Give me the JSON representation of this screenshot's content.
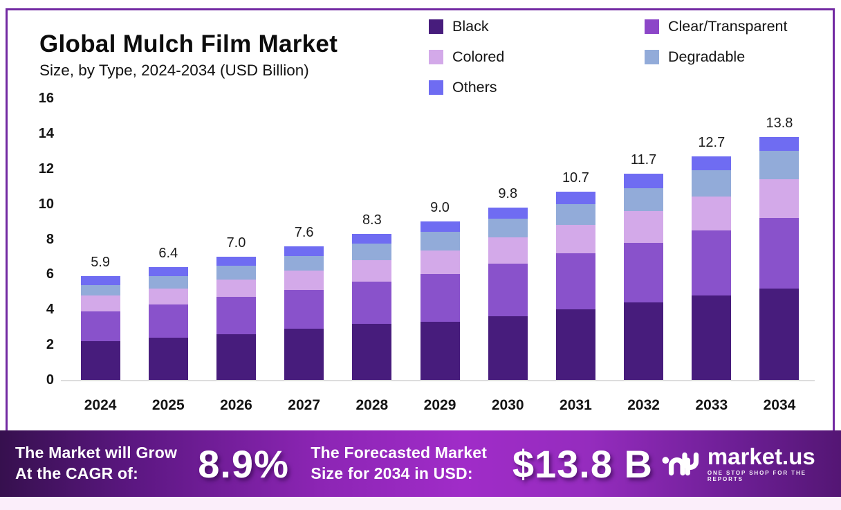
{
  "title": "Global Mulch Film Market",
  "subtitle": "Size, by Type, 2024-2034 (USD Billion)",
  "legend": [
    {
      "label": "Black",
      "color": "#471c7c"
    },
    {
      "label": "Clear/Transparent",
      "color": "#8c46c8"
    },
    {
      "label": "Colored",
      "color": "#d3a9e9"
    },
    {
      "label": "Degradable",
      "color": "#92abd9"
    },
    {
      "label": "Others",
      "color": "#6f6cf2"
    }
  ],
  "chart_data": {
    "type": "bar",
    "stacked": true,
    "title": "Global Mulch Film Market Size, by Type, 2024-2034 (USD Billion)",
    "categories": [
      "2024",
      "2025",
      "2026",
      "2027",
      "2028",
      "2029",
      "2030",
      "2031",
      "2032",
      "2033",
      "2034"
    ],
    "totals": [
      5.9,
      6.4,
      7.0,
      7.6,
      8.3,
      9.0,
      9.8,
      10.7,
      11.7,
      12.7,
      13.8
    ],
    "total_labels": [
      "5.9",
      "6.4",
      "7.0",
      "7.6",
      "8.3",
      "9.0",
      "9.8",
      "10.7",
      "11.7",
      "12.7",
      "13.8"
    ],
    "series": [
      {
        "name": "Black",
        "color": "#471c7c",
        "values": [
          2.2,
          2.4,
          2.6,
          2.9,
          3.2,
          3.3,
          3.6,
          4.0,
          4.4,
          4.8,
          5.2
        ]
      },
      {
        "name": "Clear/Transparent",
        "color": "#8952cb",
        "values": [
          1.7,
          1.9,
          2.1,
          2.2,
          2.4,
          2.7,
          3.0,
          3.2,
          3.4,
          3.7,
          4.0
        ]
      },
      {
        "name": "Colored",
        "color": "#d3a9e9",
        "values": [
          0.9,
          0.9,
          1.0,
          1.1,
          1.2,
          1.35,
          1.5,
          1.6,
          1.8,
          1.9,
          2.2
        ]
      },
      {
        "name": "Degradable",
        "color": "#92abd9",
        "values": [
          0.6,
          0.7,
          0.8,
          0.85,
          0.95,
          1.05,
          1.05,
          1.2,
          1.3,
          1.5,
          1.6
        ]
      },
      {
        "name": "Others",
        "color": "#6f6cf2",
        "values": [
          0.5,
          0.5,
          0.5,
          0.55,
          0.55,
          0.6,
          0.65,
          0.7,
          0.8,
          0.8,
          0.8
        ]
      }
    ],
    "xlabel": "",
    "ylabel": "",
    "ylim": [
      0,
      16
    ],
    "yticks": [
      0,
      2,
      4,
      6,
      8,
      10,
      12,
      14,
      16
    ],
    "grid": false,
    "legend_position": "top-right"
  },
  "banner": {
    "cagr_label_line1": "The Market will Grow",
    "cagr_label_line2": "At the CAGR of:",
    "cagr_value": "8.9%",
    "forecast_label_line1": "The Forecasted Market",
    "forecast_label_line2": "Size for 2034 in USD:",
    "forecast_value": "$13.8 B",
    "logo_text": "market.us",
    "logo_tagline": "ONE STOP SHOP FOR THE REPORTS"
  },
  "colors": {
    "frame_border": "#7229a2",
    "banner_gradient_left": "#36104e",
    "banner_gradient_mid": "#a02cc8",
    "banner_gradient_right": "#541674",
    "baseline": "#dddddd",
    "bottom_strip": "#fbeefa"
  }
}
